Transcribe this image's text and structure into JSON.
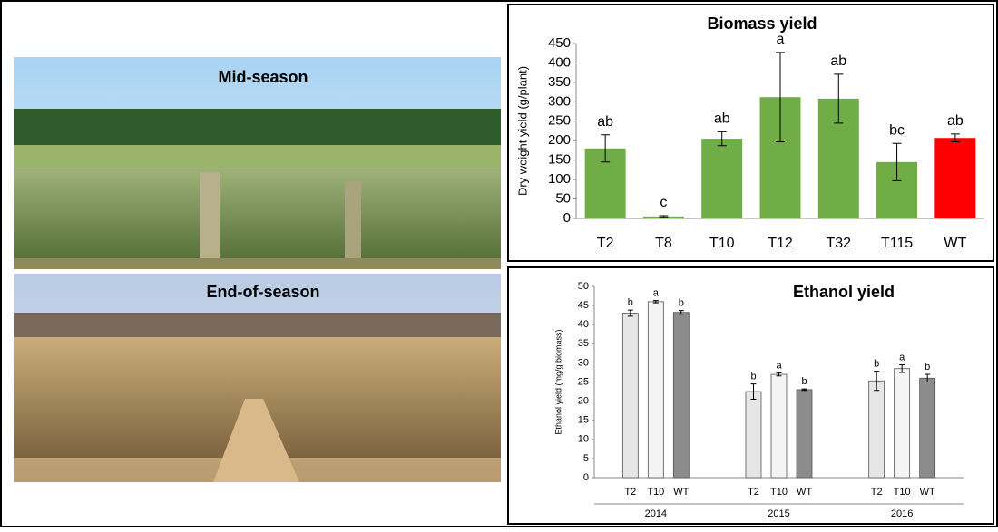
{
  "photos": [
    {
      "label": "Mid-season"
    },
    {
      "label": "End-of-season"
    }
  ],
  "chart_data": [
    {
      "type": "bar",
      "title": "Biomass yield",
      "ylabel": "Dry weight yield (g/plant)",
      "categories": [
        "T2",
        "T8",
        "T10",
        "T12",
        "T32",
        "T115",
        "WT"
      ],
      "values": [
        180,
        5,
        205,
        312,
        308,
        145,
        207
      ],
      "errors": [
        35,
        2,
        18,
        115,
        63,
        48,
        10
      ],
      "labels": [
        "ab",
        "c",
        "ab",
        "a",
        "ab",
        "bc",
        "ab"
      ],
      "colors": [
        "#70ad47",
        "#70ad47",
        "#70ad47",
        "#70ad47",
        "#70ad47",
        "#70ad47",
        "#ff0000"
      ],
      "ylim": [
        0,
        450
      ],
      "yticks": [
        0,
        50,
        100,
        150,
        200,
        250,
        300,
        350,
        400,
        450
      ]
    },
    {
      "type": "grouped-bar",
      "title": "Ethanol yield",
      "ylabel": "Ethanol yield (mg/g biomass)",
      "categories": [
        "2014",
        "2015",
        "2016"
      ],
      "series": [
        {
          "name": "T2",
          "color": "#e6e6e6",
          "values": [
            43,
            22.5,
            25.3
          ],
          "errors": [
            0.8,
            2,
            2.5
          ],
          "labels": [
            "b",
            "b",
            "b"
          ]
        },
        {
          "name": "T10",
          "color": "#f4f4f4",
          "values": [
            46,
            27,
            28.5
          ],
          "errors": [
            0.3,
            0.4,
            1
          ],
          "labels": [
            "a",
            "a",
            "a"
          ]
        },
        {
          "name": "WT",
          "color": "#8c8c8c",
          "values": [
            43.2,
            23,
            26
          ],
          "errors": [
            0.5,
            0.2,
            1
          ],
          "labels": [
            "b",
            "b",
            "b"
          ]
        }
      ],
      "ylim": [
        0,
        50
      ],
      "yticks": [
        0,
        5,
        10,
        15,
        20,
        25,
        30,
        35,
        40,
        45,
        50
      ]
    }
  ]
}
